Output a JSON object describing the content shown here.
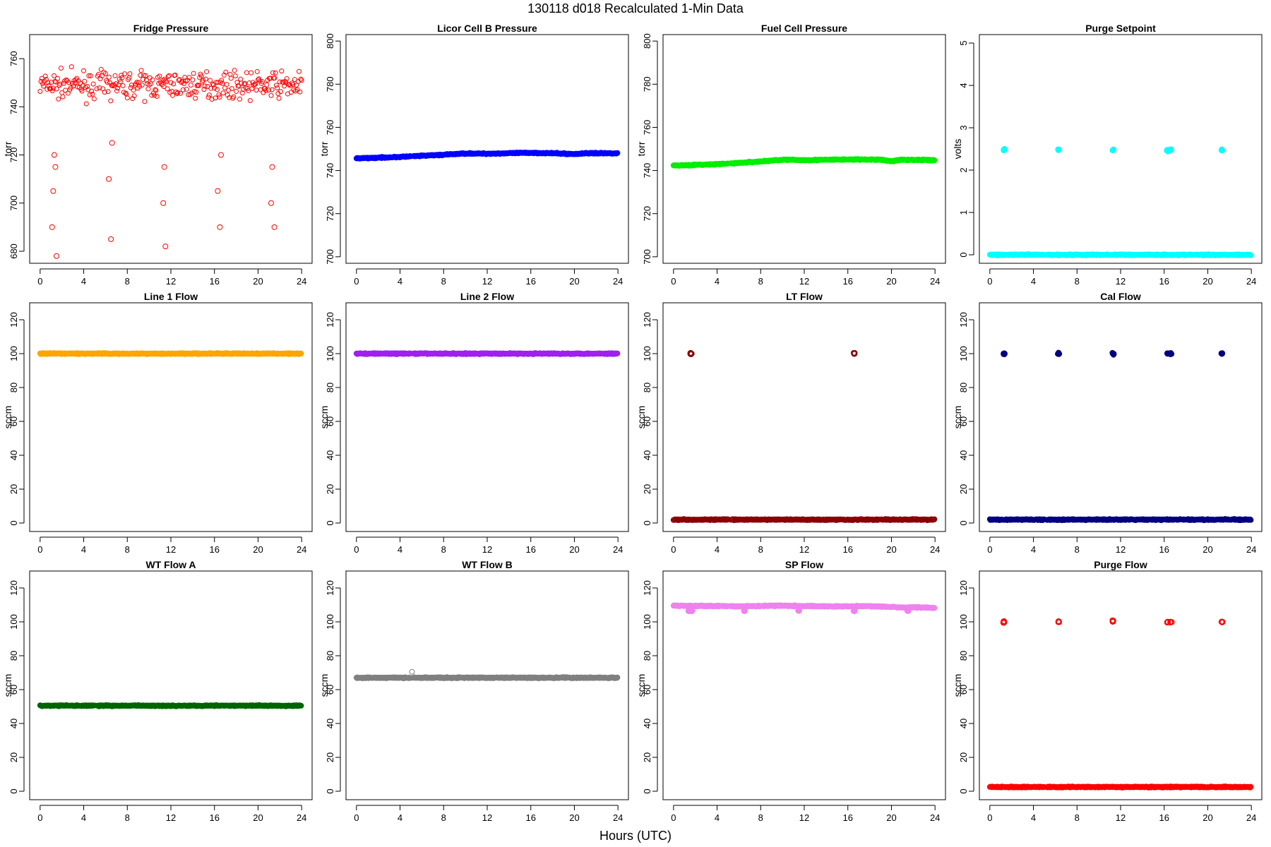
{
  "title": "130118   d018   Recalculated 1-Min Data",
  "xlabel": "Hours (UTC)",
  "chart_data": [
    {
      "type": "scatter",
      "title": "Fridge Pressure",
      "ylabel": "torr",
      "color": "#ff0000",
      "marker": "open-circle",
      "xlim": [
        0,
        24
      ],
      "ylim": [
        675,
        770
      ],
      "x_ticks": [
        0,
        4,
        8,
        12,
        16,
        20,
        24
      ],
      "y_ticks": [
        680,
        700,
        720,
        740,
        760
      ],
      "gap_hours": [
        5.0,
        5.2
      ],
      "series": [
        {
          "base": 749,
          "spread": 9,
          "x": [
            0,
            24
          ]
        },
        {
          "x": [
            1.1,
            1.2,
            1.3,
            1.4,
            1.5,
            6.3,
            6.5,
            6.6,
            11.3,
            11.4,
            11.5,
            16.3,
            16.5,
            16.6,
            21.2,
            21.3,
            21.5
          ],
          "values": [
            690,
            705,
            720,
            715,
            678,
            710,
            685,
            725,
            700,
            715,
            682,
            705,
            690,
            720,
            700,
            715,
            690
          ]
        }
      ]
    },
    {
      "type": "scatter",
      "title": "Licor Cell B Pressure",
      "ylabel": "torr",
      "color": "#0000ff",
      "marker": "filled-circle",
      "xlim": [
        0,
        24
      ],
      "ylim": [
        697,
        803
      ],
      "x_ticks": [
        0,
        4,
        8,
        12,
        16,
        20,
        24
      ],
      "y_ticks": [
        700,
        720,
        740,
        760,
        780,
        800
      ],
      "gap_hours": [
        5.0,
        5.2
      ],
      "series": [
        {
          "x": [
            0,
            4,
            8,
            10,
            12,
            16,
            18,
            20,
            21,
            24
          ],
          "values": [
            745.6,
            746.3,
            747.3,
            747.9,
            747.8,
            748.2,
            748.0,
            747.6,
            748.0,
            748.0
          ]
        }
      ]
    },
    {
      "type": "scatter",
      "title": "Fuel Cell Pressure",
      "ylabel": "torr",
      "color": "#00ee00",
      "marker": "filled-circle",
      "xlim": [
        0,
        24
      ],
      "ylim": [
        697,
        803
      ],
      "x_ticks": [
        0,
        4,
        8,
        12,
        16,
        20,
        24
      ],
      "y_ticks": [
        700,
        720,
        740,
        760,
        780,
        800
      ],
      "gap_hours": [
        5.0,
        5.2
      ],
      "series": [
        {
          "x": [
            0,
            4,
            6,
            8,
            10,
            12,
            16,
            19,
            20,
            21,
            24
          ],
          "values": [
            742.3,
            742.9,
            743.5,
            744.2,
            745.0,
            744.8,
            745.1,
            745.0,
            744.3,
            745.0,
            744.8
          ]
        }
      ]
    },
    {
      "type": "scatter",
      "title": "Purge Setpoint",
      "ylabel": "volts",
      "color": "#00ffff",
      "marker": "filled-circle",
      "xlim": [
        0,
        24
      ],
      "ylim": [
        -0.2,
        5.2
      ],
      "x_ticks": [
        0,
        4,
        8,
        12,
        16,
        20,
        24
      ],
      "y_ticks": [
        0,
        1,
        2,
        3,
        4,
        5
      ],
      "gap_hours": [
        5.0,
        5.2
      ],
      "series": [
        {
          "x": [
            0,
            24
          ],
          "values": [
            0,
            0
          ]
        },
        {
          "x": [
            1.3,
            6.3,
            11.3,
            16.3,
            16.6,
            21.3
          ],
          "values": [
            2.48,
            2.48,
            2.48,
            2.46,
            2.48,
            2.47
          ],
          "cluster": true
        }
      ]
    },
    {
      "type": "scatter",
      "title": "Line 1 Flow",
      "ylabel": "sccm",
      "color": "#ffa500",
      "marker": "filled-circle",
      "xlim": [
        0,
        24
      ],
      "ylim": [
        -5,
        130
      ],
      "x_ticks": [
        0,
        4,
        8,
        12,
        16,
        20,
        24
      ],
      "y_ticks": [
        0,
        20,
        40,
        60,
        80,
        100,
        120
      ],
      "gap_hours": [
        5.0,
        5.2
      ],
      "series": [
        {
          "x": [
            0,
            24
          ],
          "values": [
            100,
            100
          ]
        }
      ]
    },
    {
      "type": "scatter",
      "title": "Line 2 Flow",
      "ylabel": "sccm",
      "color": "#a020f0",
      "marker": "filled-circle",
      "xlim": [
        0,
        24
      ],
      "ylim": [
        -5,
        130
      ],
      "x_ticks": [
        0,
        4,
        8,
        12,
        16,
        20,
        24
      ],
      "y_ticks": [
        0,
        20,
        40,
        60,
        80,
        100,
        120
      ],
      "gap_hours": [
        5.0,
        5.2
      ],
      "series": [
        {
          "x": [
            0,
            24
          ],
          "values": [
            100,
            100
          ]
        }
      ]
    },
    {
      "type": "scatter",
      "title": "LT Flow",
      "ylabel": "sccm",
      "color": "#8b0000",
      "marker": "open-circle",
      "xlim": [
        0,
        24
      ],
      "ylim": [
        -5,
        130
      ],
      "x_ticks": [
        0,
        4,
        8,
        12,
        16,
        20,
        24
      ],
      "y_ticks": [
        0,
        20,
        40,
        60,
        80,
        100,
        120
      ],
      "gap_hours": [
        5.0,
        5.2
      ],
      "series": [
        {
          "x": [
            0,
            24
          ],
          "values": [
            2,
            2
          ]
        },
        {
          "x": [
            1.6,
            16.6
          ],
          "values": [
            100,
            100
          ],
          "cluster": true
        }
      ]
    },
    {
      "type": "scatter",
      "title": "Cal Flow",
      "ylabel": "sccm",
      "color": "#000080",
      "marker": "filled-circle",
      "xlim": [
        0,
        24
      ],
      "ylim": [
        -5,
        130
      ],
      "x_ticks": [
        0,
        4,
        8,
        12,
        16,
        20,
        24
      ],
      "y_ticks": [
        0,
        20,
        40,
        60,
        80,
        100,
        120
      ],
      "gap_hours": [
        5.0,
        5.2
      ],
      "series": [
        {
          "x": [
            0,
            24
          ],
          "values": [
            2,
            2
          ]
        },
        {
          "x": [
            1.3,
            6.3,
            11.3,
            16.3,
            16.6,
            21.3
          ],
          "values": [
            100,
            100,
            100,
            100,
            100,
            100
          ],
          "cluster": true
        }
      ]
    },
    {
      "type": "scatter",
      "title": "WT Flow A",
      "ylabel": "sccm",
      "color": "#006400",
      "marker": "filled-circle",
      "xlim": [
        0,
        24
      ],
      "ylim": [
        -5,
        130
      ],
      "x_ticks": [
        0,
        4,
        8,
        12,
        16,
        20,
        24
      ],
      "y_ticks": [
        0,
        20,
        40,
        60,
        80,
        100,
        120
      ],
      "gap_hours": [
        5.0,
        5.2
      ],
      "series": [
        {
          "x": [
            0,
            24
          ],
          "values": [
            50.5,
            50.5
          ]
        }
      ]
    },
    {
      "type": "scatter",
      "title": "WT Flow B",
      "ylabel": "sccm",
      "color": "#808080",
      "marker": "filled-circle",
      "xlim": [
        0,
        24
      ],
      "ylim": [
        -5,
        130
      ],
      "x_ticks": [
        0,
        4,
        8,
        12,
        16,
        20,
        24
      ],
      "y_ticks": [
        0,
        20,
        40,
        60,
        80,
        100,
        120
      ],
      "gap_hours": [
        5.0,
        5.2
      ],
      "series": [
        {
          "x": [
            0,
            24
          ],
          "values": [
            67,
            67
          ]
        },
        {
          "x": [
            5.1
          ],
          "values": [
            70.5
          ],
          "cluster": false
        }
      ]
    },
    {
      "type": "scatter",
      "title": "SP Flow",
      "ylabel": "sccm",
      "color": "#ee82ee",
      "marker": "filled-circle",
      "xlim": [
        0,
        24
      ],
      "ylim": [
        -5,
        130
      ],
      "x_ticks": [
        0,
        4,
        8,
        12,
        16,
        20,
        24
      ],
      "y_ticks": [
        0,
        20,
        40,
        60,
        80,
        100,
        120
      ],
      "gap_hours": [
        5.0,
        5.2
      ],
      "series": [
        {
          "x": [
            0,
            6,
            10,
            12,
            16,
            18,
            20,
            21,
            22,
            24
          ],
          "values": [
            109.5,
            109.2,
            109.6,
            109.3,
            109.1,
            109.3,
            108.8,
            108.4,
            108.5,
            108.3
          ]
        },
        {
          "x": [
            1.4,
            1.7,
            6.5,
            11.5,
            16.6,
            21.5
          ],
          "values": [
            106.5,
            106.5,
            106.5,
            106.8,
            106.5,
            106.8
          ],
          "cluster": true
        }
      ]
    },
    {
      "type": "scatter",
      "title": "Purge Flow",
      "ylabel": "sccm",
      "color": "#ff0000",
      "marker": "open-circle",
      "xlim": [
        0,
        24
      ],
      "ylim": [
        -5,
        130
      ],
      "x_ticks": [
        0,
        4,
        8,
        12,
        16,
        20,
        24
      ],
      "y_ticks": [
        0,
        20,
        40,
        60,
        80,
        100,
        120
      ],
      "gap_hours": [
        5.0,
        5.2
      ],
      "series": [
        {
          "x": [
            0,
            24
          ],
          "values": [
            2.5,
            2.5
          ]
        },
        {
          "x": [
            1.3,
            6.3,
            11.3,
            16.3,
            16.6,
            21.3
          ],
          "values": [
            100,
            100,
            100.5,
            100,
            100,
            100
          ],
          "cluster": true
        }
      ]
    }
  ]
}
